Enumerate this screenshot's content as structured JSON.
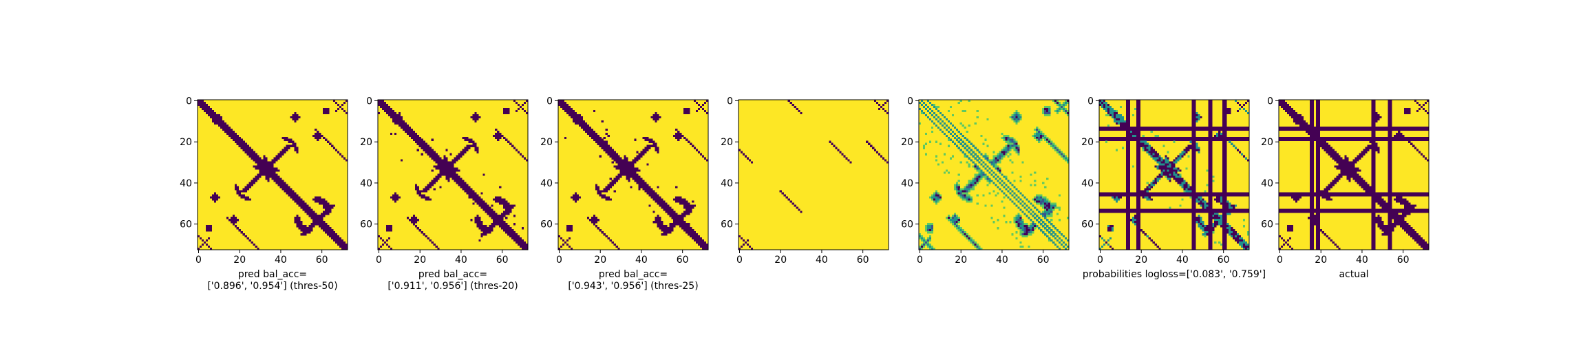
{
  "colors": {
    "low": "#440154",
    "high": "#fde725",
    "mid1": "#21918c",
    "mid2": "#5ec962",
    "mid3": "#3b528b",
    "axis": "#000000"
  },
  "chart_data": {
    "type": "heatmap",
    "matrix_size": 73,
    "x_ticks": [
      "0",
      "20",
      "40",
      "60"
    ],
    "y_ticks": [
      "0",
      "20",
      "40",
      "60"
    ],
    "panels": [
      {
        "name": "pred-thres-50",
        "kind": "binary-pred",
        "xlabel_lines": [
          "pred bal_acc=",
          "['0.896', '0.954'] (thres-50)"
        ]
      },
      {
        "name": "pred-thres-20",
        "kind": "binary-pred",
        "xlabel_lines": [
          "pred bal_acc=",
          "['0.911', '0.956'] (thres-20)"
        ]
      },
      {
        "name": "pred-thres-25",
        "kind": "binary-pred",
        "xlabel_lines": [
          "pred bal_acc=",
          "['0.943', '0.956'] (thres-25)"
        ]
      },
      {
        "name": "sparse-map",
        "kind": "sparse",
        "xlabel_lines": []
      },
      {
        "name": "probabilities",
        "kind": "probability",
        "xlabel_lines": []
      },
      {
        "name": "probabilities-logloss",
        "kind": "probability-bands",
        "xlabel_lines": [
          "probabilities logloss=['0.083', '0.759']"
        ]
      },
      {
        "name": "actual",
        "kind": "actual",
        "xlabel_lines": [
          "actual"
        ]
      }
    ],
    "band_rows": [
      13,
      18,
      45,
      53
    ],
    "band_cols_logloss": [
      13,
      18,
      45,
      53,
      60
    ],
    "band_cols_actual": [
      15,
      18,
      45,
      53
    ]
  }
}
